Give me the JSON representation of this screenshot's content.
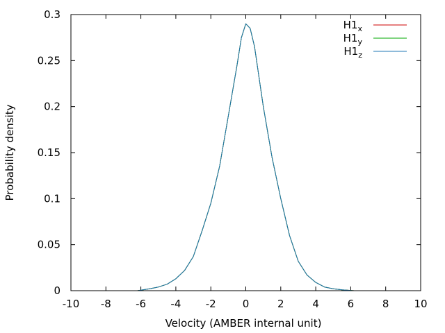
{
  "chart_data": {
    "type": "line",
    "title": "",
    "xlabel": "Velocity (AMBER internal unit)",
    "ylabel": "Probability density",
    "xlim": [
      -10,
      10
    ],
    "ylim": [
      0,
      0.3
    ],
    "xticks": [
      -10,
      -8,
      -6,
      -4,
      -2,
      0,
      2,
      4,
      6,
      8,
      10
    ],
    "yticks": [
      0,
      0.05,
      0.1,
      0.15,
      0.2,
      0.25,
      0.3
    ],
    "xtick_labels": [
      "-10",
      "-8",
      "-6",
      "-4",
      "-2",
      "0",
      "2",
      "4",
      "6",
      "8",
      "10"
    ],
    "ytick_labels": [
      "0",
      "0.05",
      "0.1",
      "0.15",
      "0.2",
      "0.25",
      "0.3"
    ],
    "grid": false,
    "legend_position": "top-right",
    "series": [
      {
        "name": "H1",
        "name_subscript": "x",
        "color": "#cc0000",
        "x": [
          -6.2,
          -5.5,
          -5.0,
          -4.5,
          -4.0,
          -3.5,
          -3.0,
          -2.5,
          -2.0,
          -1.5,
          -1.0,
          -0.5,
          -0.25,
          0.0,
          0.25,
          0.5,
          1.0,
          1.5,
          2.0,
          2.5,
          3.0,
          3.5,
          4.0,
          4.5,
          5.0,
          5.5,
          6.2
        ],
        "y": [
          0.0,
          0.002,
          0.004,
          0.007,
          0.013,
          0.022,
          0.037,
          0.065,
          0.095,
          0.135,
          0.19,
          0.245,
          0.275,
          0.29,
          0.285,
          0.265,
          0.2,
          0.145,
          0.1,
          0.06,
          0.032,
          0.017,
          0.009,
          0.004,
          0.002,
          0.001,
          0.0
        ]
      },
      {
        "name": "H1",
        "name_subscript": "y",
        "color": "#00aa00",
        "x": [
          -6.2,
          -5.5,
          -5.0,
          -4.5,
          -4.0,
          -3.5,
          -3.0,
          -2.5,
          -2.0,
          -1.5,
          -1.0,
          -0.5,
          -0.25,
          0.0,
          0.25,
          0.5,
          1.0,
          1.5,
          2.0,
          2.5,
          3.0,
          3.5,
          4.0,
          4.5,
          5.0,
          5.5,
          6.2
        ],
        "y": [
          0.0,
          0.002,
          0.004,
          0.007,
          0.013,
          0.022,
          0.037,
          0.065,
          0.095,
          0.135,
          0.19,
          0.245,
          0.275,
          0.29,
          0.285,
          0.265,
          0.2,
          0.145,
          0.1,
          0.06,
          0.032,
          0.017,
          0.009,
          0.004,
          0.002,
          0.001,
          0.0
        ]
      },
      {
        "name": "H1",
        "name_subscript": "z",
        "color": "#1f77b4",
        "x": [
          -6.2,
          -5.5,
          -5.0,
          -4.5,
          -4.0,
          -3.5,
          -3.0,
          -2.5,
          -2.0,
          -1.5,
          -1.0,
          -0.5,
          -0.25,
          0.0,
          0.25,
          0.5,
          1.0,
          1.5,
          2.0,
          2.5,
          3.0,
          3.5,
          4.0,
          4.5,
          5.0,
          5.5,
          6.2
        ],
        "y": [
          0.0,
          0.002,
          0.004,
          0.007,
          0.013,
          0.022,
          0.037,
          0.065,
          0.095,
          0.135,
          0.19,
          0.245,
          0.275,
          0.29,
          0.285,
          0.265,
          0.2,
          0.145,
          0.1,
          0.06,
          0.032,
          0.017,
          0.009,
          0.004,
          0.002,
          0.001,
          0.0
        ]
      }
    ]
  }
}
